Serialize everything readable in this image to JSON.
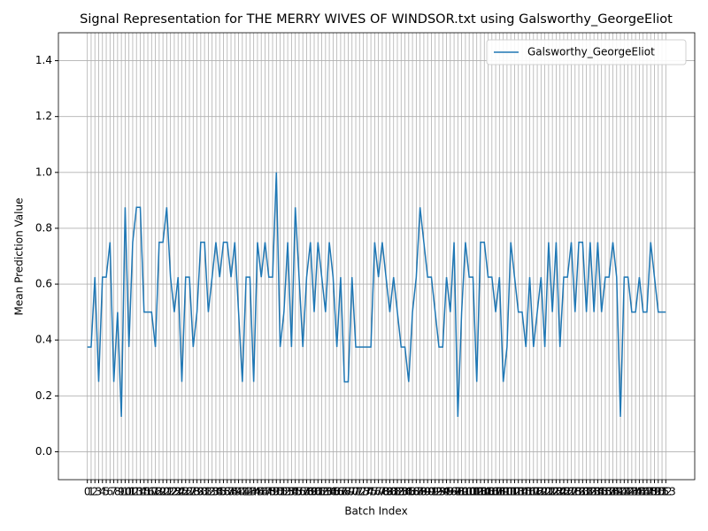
{
  "chart_data": {
    "type": "line",
    "title": "Signal Representation for THE MERRY WIVES OF WINDSOR.txt using Galsworthy_GeorgeEliot",
    "x_label": "Batch Index",
    "y_label": "Mean Prediction Value",
    "x": [
      0,
      1,
      2,
      3,
      4,
      5,
      6,
      7,
      8,
      9,
      10,
      11,
      12,
      13,
      14,
      15,
      16,
      17,
      18,
      19,
      20,
      21,
      22,
      23,
      24,
      25,
      26,
      27,
      28,
      29,
      30,
      31,
      32,
      33,
      34,
      35,
      36,
      37,
      38,
      39,
      40,
      41,
      42,
      43,
      44,
      45,
      46,
      47,
      48,
      49,
      50,
      51,
      52,
      53,
      54,
      55,
      56,
      57,
      58,
      59,
      60,
      61,
      62,
      63,
      64,
      65,
      66,
      67,
      68,
      69,
      70,
      71,
      72,
      73,
      74,
      75,
      76,
      77,
      78,
      79,
      80,
      81,
      82,
      83,
      84,
      85,
      86,
      87,
      88,
      89,
      90,
      91,
      92,
      93,
      94,
      95,
      96,
      97,
      98,
      99,
      100,
      101,
      102,
      103,
      104,
      105,
      106,
      107,
      108,
      109,
      110,
      111,
      112,
      113,
      114,
      115,
      116,
      117,
      118,
      119,
      120,
      121,
      122,
      123,
      124,
      125,
      126,
      127,
      128,
      129,
      130,
      131,
      132,
      133,
      134,
      135,
      136,
      137,
      138,
      139,
      140,
      141,
      142,
      143,
      144,
      145,
      146,
      147,
      148,
      149,
      150,
      151,
      152,
      153
    ],
    "series": [
      {
        "name": "Galsworthy_GeorgeEliot",
        "color": "#1f77b4",
        "values": [
          0.375,
          0.375,
          0.625,
          0.25,
          0.625,
          0.625,
          0.75,
          0.25,
          0.5,
          0.125,
          0.875,
          0.375,
          0.75,
          0.875,
          0.875,
          0.5,
          0.5,
          0.5,
          0.375,
          0.75,
          0.75,
          0.875,
          0.625,
          0.5,
          0.625,
          0.25,
          0.625,
          0.625,
          0.375,
          0.5,
          0.75,
          0.75,
          0.5,
          0.625,
          0.75,
          0.625,
          0.75,
          0.75,
          0.625,
          0.75,
          0.5,
          0.25,
          0.625,
          0.625,
          0.25,
          0.75,
          0.625,
          0.75,
          0.625,
          0.625,
          1.0,
          0.375,
          0.5,
          0.75,
          0.375,
          0.875,
          0.625,
          0.375,
          0.625,
          0.75,
          0.5,
          0.75,
          0.625,
          0.5,
          0.75,
          0.625,
          0.375,
          0.625,
          0.25,
          0.25,
          0.625,
          0.375,
          0.375,
          0.375,
          0.375,
          0.375,
          0.75,
          0.625,
          0.75,
          0.625,
          0.5,
          0.625,
          0.5,
          0.375,
          0.375,
          0.25,
          0.5,
          0.625,
          0.875,
          0.75,
          0.625,
          0.625,
          0.5,
          0.375,
          0.375,
          0.625,
          0.5,
          0.75,
          0.125,
          0.5,
          0.75,
          0.625,
          0.625,
          0.25,
          0.75,
          0.75,
          0.625,
          0.625,
          0.5,
          0.625,
          0.25,
          0.375,
          0.75,
          0.625,
          0.5,
          0.5,
          0.375,
          0.625,
          0.375,
          0.5,
          0.625,
          0.375,
          0.75,
          0.5,
          0.75,
          0.375,
          0.625,
          0.625,
          0.75,
          0.5,
          0.75,
          0.75,
          0.5,
          0.75,
          0.5,
          0.75,
          0.5,
          0.625,
          0.625,
          0.75,
          0.625,
          0.125,
          0.625,
          0.625,
          0.5,
          0.5,
          0.625,
          0.5,
          0.5,
          0.75,
          0.625,
          0.5,
          0.5,
          0.5
        ]
      }
    ],
    "xlim": [
      -7.65,
      160.65
    ],
    "xticks": [
      0,
      1,
      2,
      3,
      4,
      5,
      6,
      7,
      8,
      9,
      10,
      11,
      12,
      13,
      14,
      15,
      16,
      17,
      18,
      19,
      20,
      21,
      22,
      23,
      24,
      25,
      26,
      27,
      28,
      29,
      30,
      31,
      32,
      33,
      34,
      35,
      36,
      37,
      38,
      39,
      40,
      41,
      42,
      43,
      44,
      45,
      46,
      47,
      48,
      49,
      50,
      51,
      52,
      53,
      54,
      55,
      56,
      57,
      58,
      59,
      60,
      61,
      62,
      63,
      64,
      65,
      66,
      67,
      68,
      69,
      70,
      71,
      72,
      73,
      74,
      75,
      76,
      77,
      78,
      79,
      80,
      81,
      82,
      83,
      84,
      85,
      86,
      87,
      88,
      89,
      90,
      91,
      92,
      93,
      94,
      95,
      96,
      97,
      98,
      99,
      100,
      101,
      102,
      103,
      104,
      105,
      106,
      107,
      108,
      109,
      110,
      111,
      112,
      113,
      114,
      115,
      116,
      117,
      118,
      119,
      120,
      121,
      122,
      123,
      124,
      125,
      126,
      127,
      128,
      129,
      130,
      131,
      132,
      133,
      134,
      135,
      136,
      137,
      138,
      139,
      140,
      141,
      142,
      143,
      144,
      145,
      146,
      147,
      148,
      149,
      150,
      151,
      152,
      153
    ],
    "ylim": [
      -0.1,
      1.5
    ],
    "yticks": [
      {
        "value": 0,
        "label": "0.0"
      },
      0.2,
      0.4,
      0.6,
      0.8,
      {
        "value": 1,
        "label": "1.0"
      },
      1.2,
      1.4
    ],
    "grid": true,
    "legend": "upper right"
  }
}
